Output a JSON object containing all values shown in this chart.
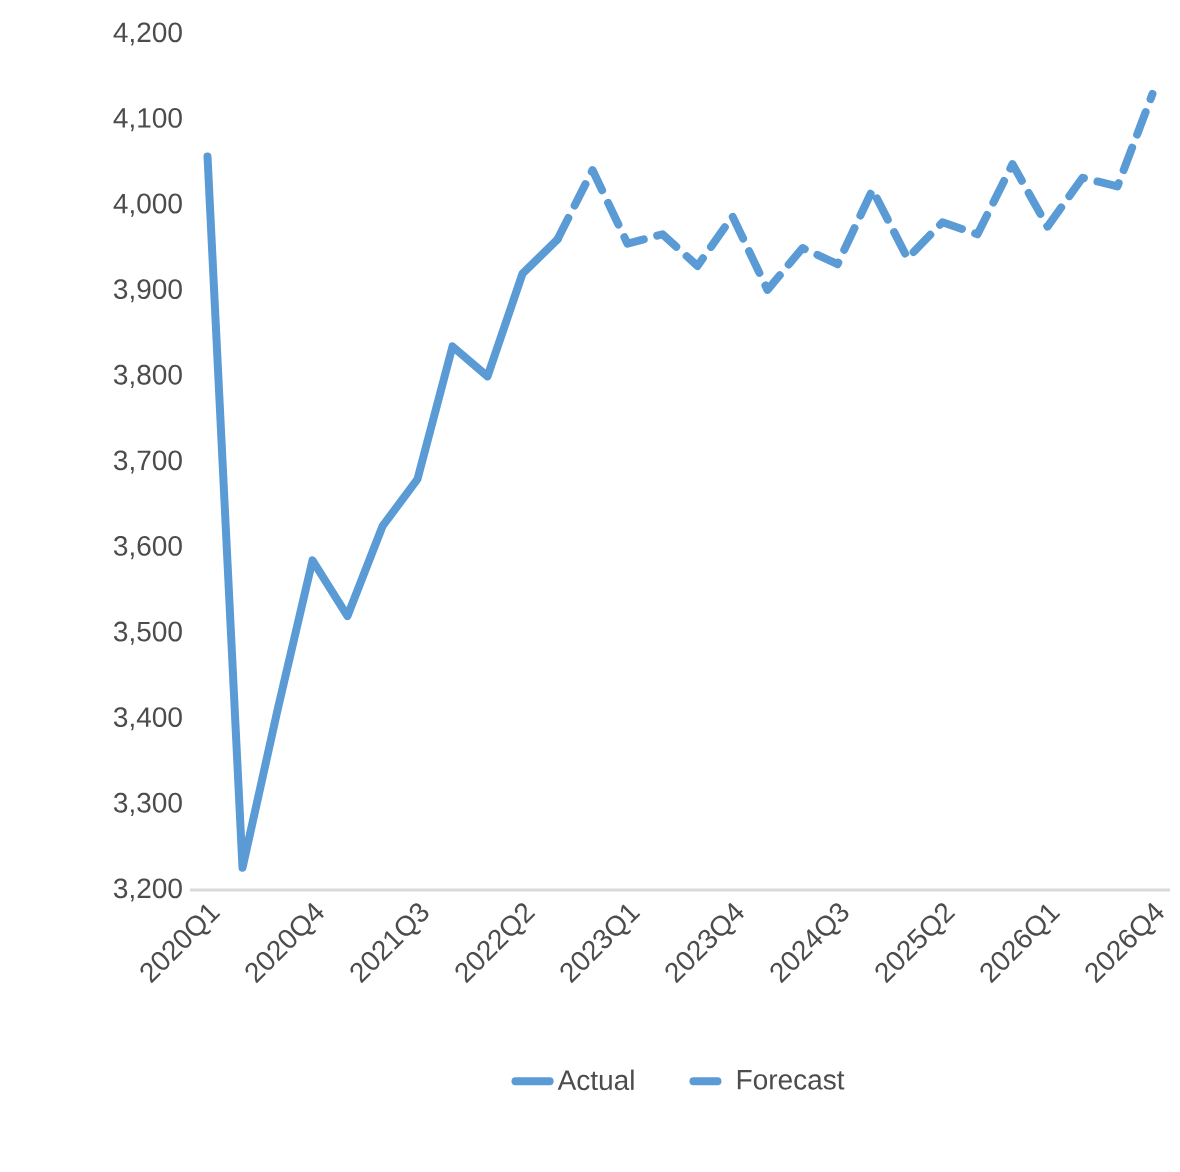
{
  "chart_data": {
    "type": "line",
    "categories": [
      "2020Q1",
      null,
      null,
      "2020Q4",
      null,
      null,
      "2021Q3",
      null,
      null,
      "2022Q2",
      null,
      null,
      "2023Q1",
      null,
      null,
      "2023Q4",
      null,
      null,
      "2024Q3",
      null,
      null,
      "2025Q2",
      null,
      null,
      "2026Q1",
      null,
      null,
      "2026Q4"
    ],
    "series": [
      {
        "name": "Actual",
        "color": "#5b9bd5",
        "line_style": "solid",
        "values": [
          4057,
          3226,
          3410,
          3585,
          3520,
          3625,
          3680,
          3835,
          3800,
          3920,
          3960,
          null,
          null,
          null,
          null,
          null,
          null,
          null,
          null,
          null,
          null,
          null,
          null,
          null,
          null,
          null,
          null,
          null
        ]
      },
      {
        "name": "Forecast",
        "color": "#5b9bd5",
        "line_style": "dashed",
        "values": [
          null,
          null,
          null,
          null,
          null,
          null,
          null,
          null,
          null,
          null,
          3960,
          4041,
          3955,
          3966,
          3929,
          3987,
          3901,
          3950,
          3931,
          4018,
          3938,
          3980,
          3966,
          4048,
          3975,
          4032,
          4022,
          4130
        ]
      }
    ],
    "ylim": [
      3200,
      4200
    ],
    "yticks": [
      {
        "value": 3200,
        "label": "3,200"
      },
      {
        "value": 3300,
        "label": "3,300"
      },
      {
        "value": 3400,
        "label": "3,400"
      },
      {
        "value": 3500,
        "label": "3,500"
      },
      {
        "value": 3600,
        "label": "3,600"
      },
      {
        "value": 3700,
        "label": "3,700"
      },
      {
        "value": 3800,
        "label": "3,800"
      },
      {
        "value": 3900,
        "label": "3,900"
      },
      {
        "value": 4000,
        "label": "4,000"
      },
      {
        "value": 4100,
        "label": "4,100"
      },
      {
        "value": 4200,
        "label": "4,200"
      }
    ],
    "grid": false,
    "legend": "bottom",
    "marker": "none"
  }
}
